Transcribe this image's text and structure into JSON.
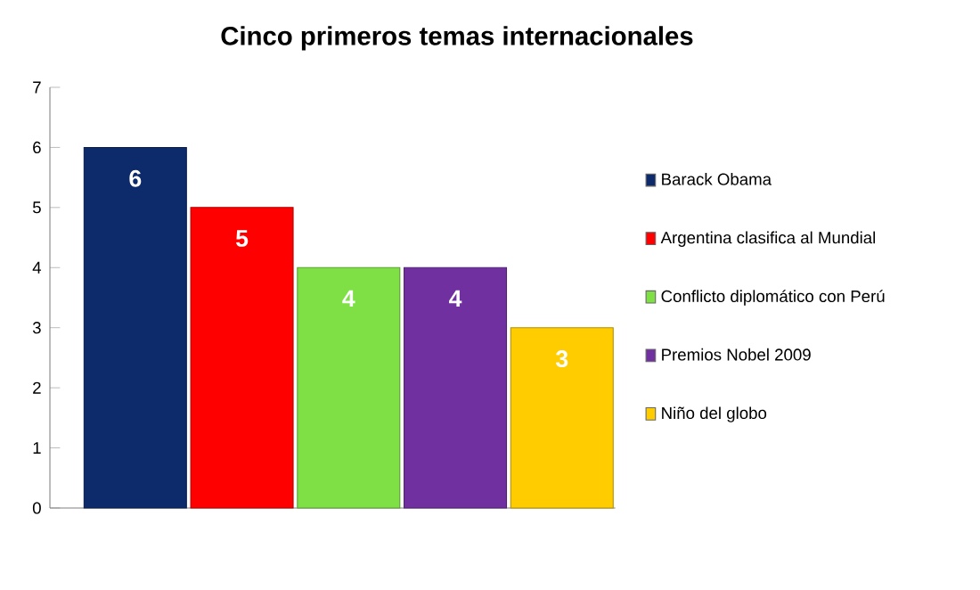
{
  "chart_data": {
    "type": "bar",
    "title": "Cinco primeros temas internacionales",
    "categories": [
      null,
      null,
      null,
      null,
      null
    ],
    "series": [
      {
        "name": "Barack Obama",
        "color": "#0d2a6b",
        "values": [
          6,
          null,
          null,
          null,
          null
        ]
      },
      {
        "name": "Argentina clasifica al Mundial",
        "color": "#ff0000",
        "values": [
          null,
          5,
          null,
          null,
          null
        ]
      },
      {
        "name": "Conflicto diplomático  con Perú",
        "color": "#7ee045",
        "values": [
          null,
          null,
          4,
          null,
          null
        ]
      },
      {
        "name": "Premios Nobel 2009",
        "color": "#7030a0",
        "values": [
          null,
          null,
          null,
          4,
          null
        ]
      },
      {
        "name": "Niño del globo",
        "color": "#ffcc00",
        "values": [
          null,
          null,
          null,
          null,
          3
        ]
      }
    ],
    "ylim": [
      0,
      7
    ],
    "yticks": [
      0,
      1,
      2,
      3,
      4,
      5,
      6,
      7
    ],
    "grid": false,
    "legend": "right",
    "data_labels": true
  }
}
